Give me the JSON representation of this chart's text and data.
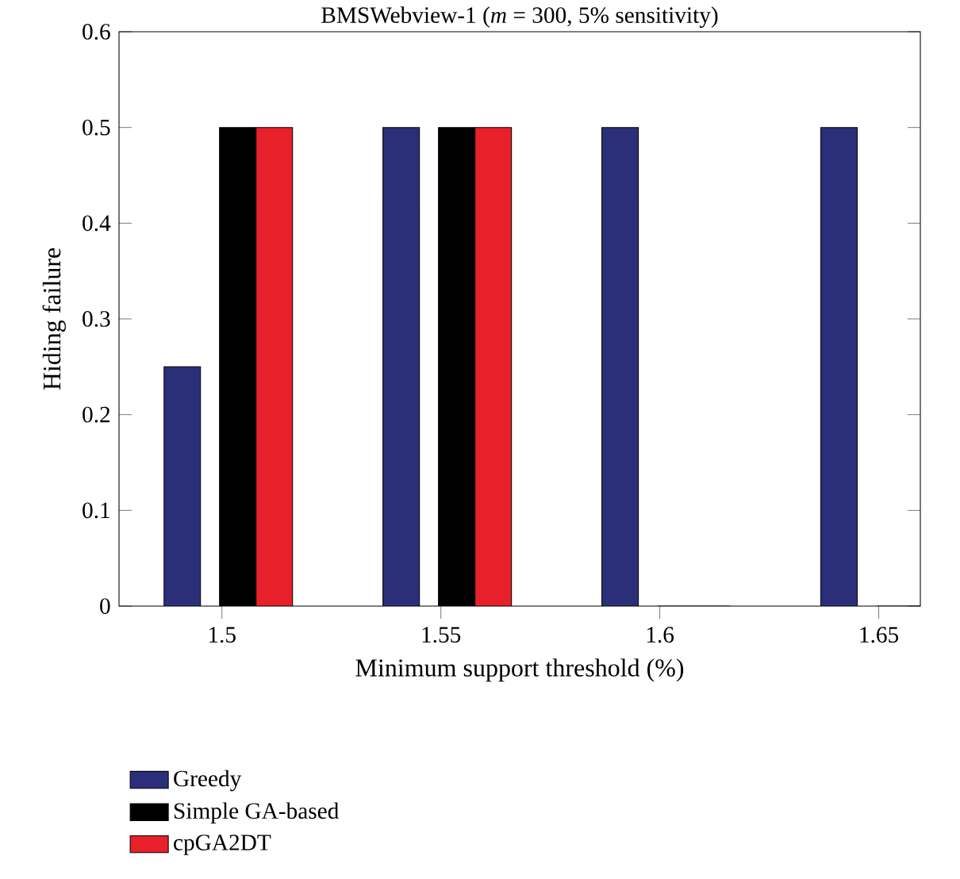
{
  "chart_data": {
    "type": "bar",
    "title": "BMSWebview-1 (*m* = 300, 5% sensitivity)",
    "xlabel": "Minimum support threshold (%)",
    "ylabel": "Hiding failure",
    "categories": [
      "1.5",
      "1.55",
      "1.6",
      "1.65"
    ],
    "series": [
      {
        "name": "Greedy",
        "color": "#2b2f7a",
        "values": [
          0.25,
          0.5,
          0.5,
          0.5
        ]
      },
      {
        "name": "Simple GA-based",
        "color": "#000000",
        "values": [
          0.5,
          0.5,
          0,
          0
        ]
      },
      {
        "name": "cpGA2DT",
        "color": "#e8202a",
        "values": [
          0.5,
          0.5,
          0,
          0
        ]
      }
    ],
    "ylim": [
      0,
      0.6
    ],
    "yticks": [
      0,
      0.1,
      0.2,
      0.3,
      0.4,
      0.5,
      0.6
    ],
    "legend": "bottom left"
  }
}
